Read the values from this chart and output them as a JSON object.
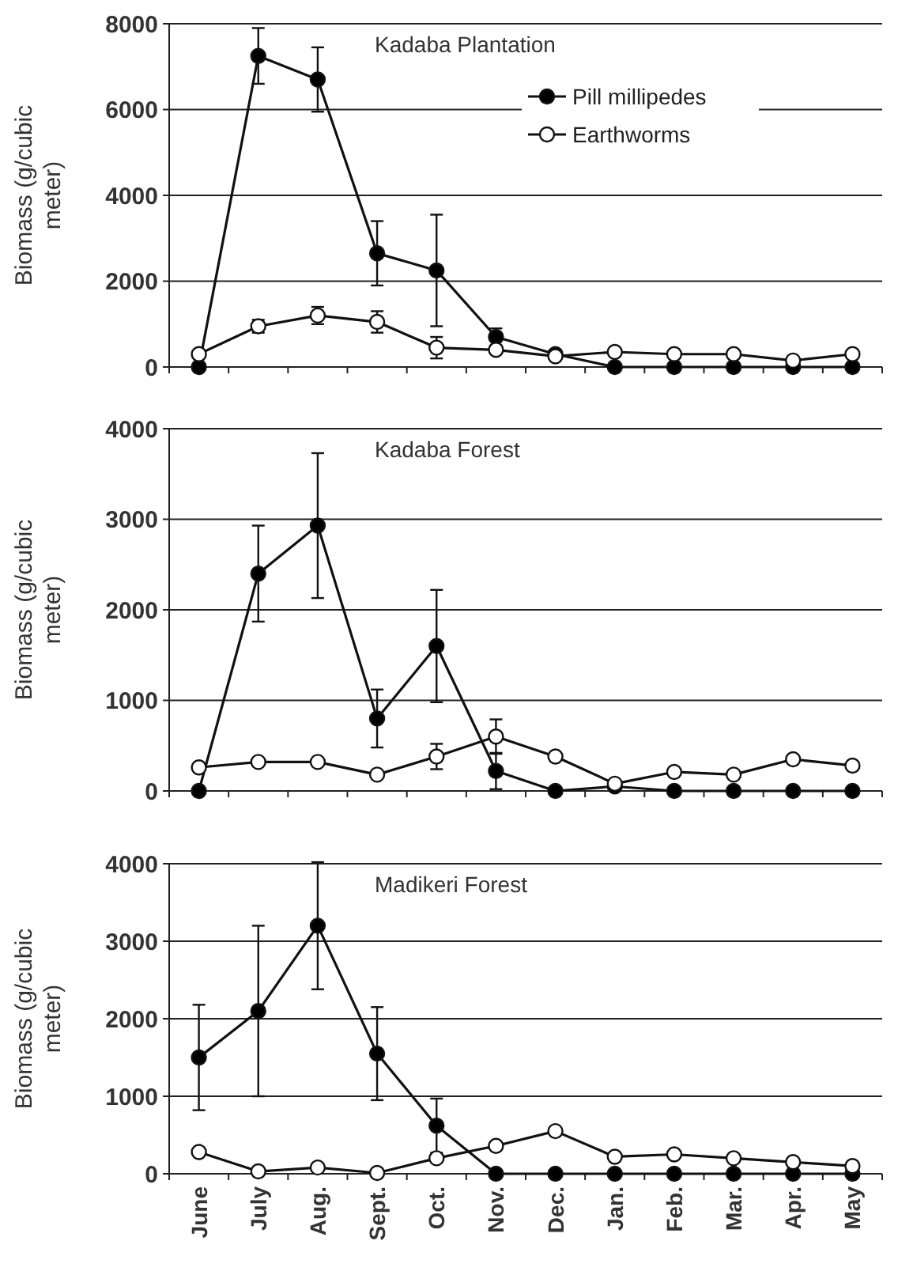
{
  "chart_data": [
    {
      "type": "line",
      "title": "Kadaba Plantation",
      "ylabel": "Biomass (g/cubic meter)",
      "categories": [
        null,
        null,
        null,
        null,
        null,
        null,
        null,
        null,
        null,
        null,
        null,
        null
      ],
      "ylim": [
        0,
        8000
      ],
      "yticks": [
        0,
        2000,
        4000,
        6000,
        8000
      ],
      "grid": "y",
      "legend": "top right",
      "marker": "circle",
      "series": [
        {
          "name": "Pill millipedes",
          "color": "#000000",
          "values": [
            0,
            7250,
            6700,
            2650,
            2250,
            700,
            300,
            0,
            0,
            0,
            0,
            0
          ],
          "errors": [
            null,
            650,
            750,
            750,
            1300,
            200,
            100,
            null,
            null,
            null,
            null,
            null
          ]
        },
        {
          "name": "Earthworms",
          "color": "#ffffff",
          "values": [
            300,
            950,
            1200,
            1050,
            450,
            400,
            250,
            350,
            300,
            300,
            150,
            300
          ],
          "errors": [
            null,
            150,
            200,
            250,
            250,
            null,
            null,
            null,
            null,
            null,
            null,
            null
          ]
        }
      ]
    },
    {
      "type": "line",
      "title": "Kadaba Forest",
      "ylabel": "Biomass (g/cubic meter)",
      "categories": [
        null,
        null,
        null,
        null,
        null,
        null,
        null,
        null,
        null,
        null,
        null,
        null
      ],
      "ylim": [
        0,
        4000
      ],
      "yticks": [
        0,
        1000,
        2000,
        3000,
        4000
      ],
      "grid": "y",
      "marker": "circle",
      "series": [
        {
          "color": "#000000",
          "values": [
            0,
            2400,
            2930,
            800,
            1600,
            220,
            0,
            50,
            0,
            0,
            0,
            0
          ],
          "errors": [
            null,
            530,
            800,
            320,
            620,
            200,
            null,
            null,
            null,
            null,
            null,
            null
          ]
        },
        {
          "color": "#ffffff",
          "values": [
            260,
            320,
            320,
            180,
            380,
            600,
            380,
            80,
            210,
            180,
            350,
            280
          ],
          "errors": [
            null,
            null,
            null,
            null,
            140,
            190,
            null,
            null,
            null,
            null,
            null,
            null
          ]
        }
      ]
    },
    {
      "type": "line",
      "title": "Madikeri Forest",
      "ylabel": "Biomass (g/cubic meter)",
      "categories": [
        "June",
        "July",
        "Aug.",
        "Sept.",
        "Oct.",
        "Nov.",
        "Dec.",
        "Jan.",
        "Feb.",
        "Mar.",
        "Apr.",
        "May"
      ],
      "ylim": [
        0,
        4000
      ],
      "yticks": [
        0,
        1000,
        2000,
        3000,
        4000
      ],
      "grid": "y",
      "marker": "circle",
      "series": [
        {
          "color": "#000000",
          "values": [
            1500,
            2100,
            3200,
            1550,
            620,
            0,
            0,
            0,
            0,
            0,
            0,
            0
          ],
          "errors": [
            680,
            1100,
            820,
            600,
            350,
            null,
            null,
            null,
            null,
            null,
            null,
            null
          ]
        },
        {
          "color": "#ffffff",
          "values": [
            280,
            30,
            80,
            10,
            200,
            360,
            550,
            220,
            250,
            200,
            150,
            100
          ]
        }
      ]
    }
  ]
}
